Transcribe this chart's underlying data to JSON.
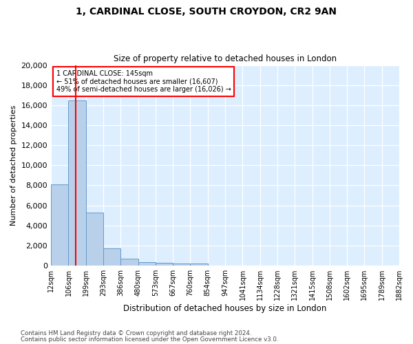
{
  "title": "1, CARDINAL CLOSE, SOUTH CROYDON, CR2 9AN",
  "subtitle": "Size of property relative to detached houses in London",
  "xlabel": "Distribution of detached houses by size in London",
  "ylabel": "Number of detached properties",
  "bar_color": "#b8d0ea",
  "bar_edge_color": "#6699cc",
  "grid_color": "#c0d4e8",
  "background_color": "#ddeeff",
  "annotation_text_line1": "1 CARDINAL CLOSE: 145sqm",
  "annotation_text_line2": "← 51% of detached houses are smaller (16,607)",
  "annotation_text_line3": "49% of semi-detached houses are larger (16,026) →",
  "property_line_x": 145,
  "footnote1": "Contains HM Land Registry data © Crown copyright and database right 2024.",
  "footnote2": "Contains public sector information licensed under the Open Government Licence v3.0.",
  "bins": [
    12,
    106,
    199,
    293,
    386,
    480,
    573,
    667,
    760,
    854,
    947,
    1041,
    1134,
    1228,
    1321,
    1415,
    1508,
    1602,
    1695,
    1789,
    1882
  ],
  "bin_labels": [
    "12sqm",
    "106sqm",
    "199sqm",
    "293sqm",
    "386sqm",
    "480sqm",
    "573sqm",
    "667sqm",
    "760sqm",
    "854sqm",
    "947sqm",
    "1041sqm",
    "1134sqm",
    "1228sqm",
    "1321sqm",
    "1415sqm",
    "1508sqm",
    "1602sqm",
    "1695sqm",
    "1789sqm",
    "1882sqm"
  ],
  "values": [
    8100,
    16500,
    5300,
    1750,
    700,
    380,
    280,
    230,
    200,
    0,
    0,
    0,
    0,
    0,
    0,
    0,
    0,
    0,
    0,
    0
  ],
  "ylim": [
    0,
    20000
  ],
  "yticks": [
    0,
    2000,
    4000,
    6000,
    8000,
    10000,
    12000,
    14000,
    16000,
    18000,
    20000
  ]
}
